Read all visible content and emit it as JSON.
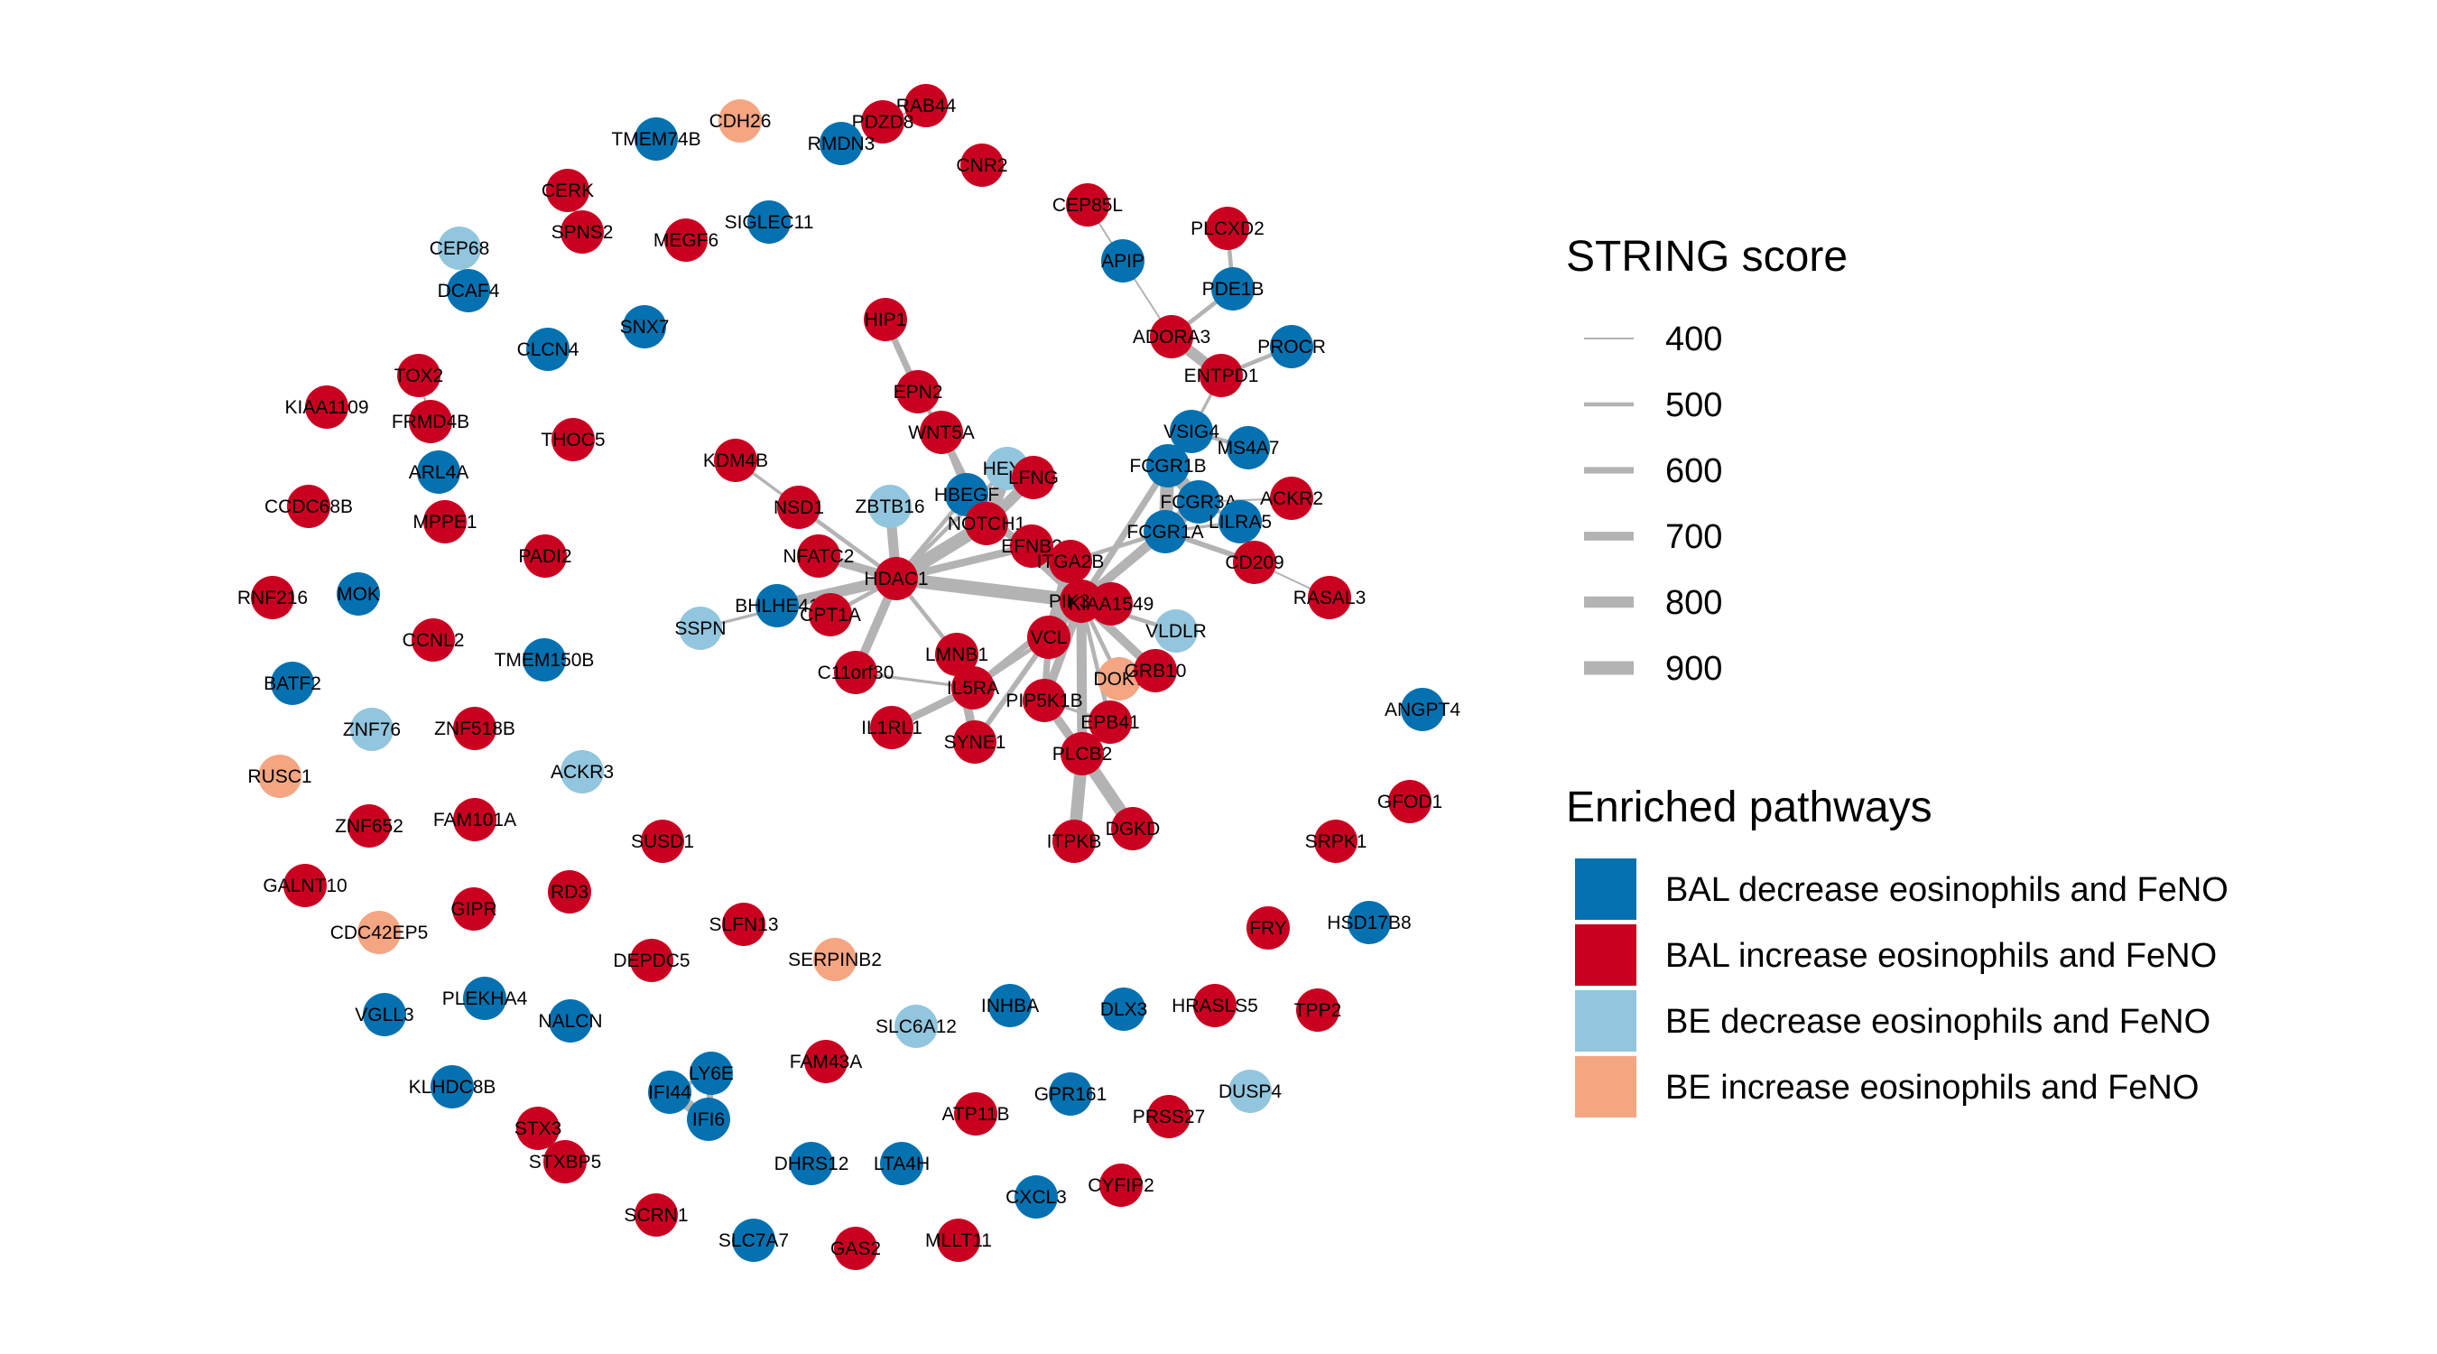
{
  "colors": {
    "edge": "#b3b3b3",
    "BAL_dec": "#0571b0",
    "BAL_inc": "#ca0020",
    "BE_dec": "#92c5de",
    "BE_inc": "#f4a582"
  },
  "legend": {
    "string_title": "STRING score",
    "string_items": [
      {
        "label": "400",
        "score": 400
      },
      {
        "label": "500",
        "score": 500
      },
      {
        "label": "600",
        "score": 600
      },
      {
        "label": "700",
        "score": 700
      },
      {
        "label": "800",
        "score": 800
      },
      {
        "label": "900",
        "score": 900
      }
    ],
    "pathways_title": "Enriched pathways",
    "pathway_items": [
      {
        "label": "BAL decrease eosinophils and FeNO",
        "group": "BAL_dec"
      },
      {
        "label": "BAL increase eosinophils and FeNO",
        "group": "BAL_inc"
      },
      {
        "label": "BE decrease eosinophils and FeNO",
        "group": "BE_dec"
      },
      {
        "label": "BE increase eosinophils and FeNO",
        "group": "BE_inc"
      }
    ]
  },
  "nodes": [
    {
      "id": "RAB44",
      "g": "BAL_inc"
    },
    {
      "id": "PDZD8",
      "g": "BAL_inc"
    },
    {
      "id": "CDH26",
      "g": "BE_inc"
    },
    {
      "id": "TMEM74B",
      "g": "BAL_dec"
    },
    {
      "id": "RMDN3",
      "g": "BAL_dec"
    },
    {
      "id": "CNR2",
      "g": "BAL_inc"
    },
    {
      "id": "CERK",
      "g": "BAL_inc"
    },
    {
      "id": "SPNS2",
      "g": "BAL_inc"
    },
    {
      "id": "MEGF6",
      "g": "BAL_inc"
    },
    {
      "id": "SIGLEC11",
      "g": "BAL_dec"
    },
    {
      "id": "CEP85L",
      "g": "BAL_inc"
    },
    {
      "id": "PLCXD2",
      "g": "BAL_inc"
    },
    {
      "id": "APIP",
      "g": "BAL_dec"
    },
    {
      "id": "CEP68",
      "g": "BE_dec"
    },
    {
      "id": "DCAF4",
      "g": "BAL_dec"
    },
    {
      "id": "PDE1B",
      "g": "BAL_dec"
    },
    {
      "id": "HIP1",
      "g": "BAL_inc"
    },
    {
      "id": "SNX7",
      "g": "BAL_dec"
    },
    {
      "id": "CLCN4",
      "g": "BAL_dec"
    },
    {
      "id": "ADORA3",
      "g": "BAL_inc"
    },
    {
      "id": "PROCR",
      "g": "BAL_dec"
    },
    {
      "id": "ENTPD1",
      "g": "BAL_inc"
    },
    {
      "id": "TOX2",
      "g": "BAL_inc"
    },
    {
      "id": "EPN2",
      "g": "BAL_inc"
    },
    {
      "id": "KIAA1109",
      "g": "BAL_inc"
    },
    {
      "id": "FRMD4B",
      "g": "BAL_inc"
    },
    {
      "id": "THOC5",
      "g": "BAL_inc"
    },
    {
      "id": "WNT5A",
      "g": "BAL_inc"
    },
    {
      "id": "VSIG4",
      "g": "BAL_dec"
    },
    {
      "id": "MS4A7",
      "g": "BAL_dec"
    },
    {
      "id": "KDM4B",
      "g": "BAL_inc"
    },
    {
      "id": "ARL4A",
      "g": "BAL_dec"
    },
    {
      "id": "HEY1",
      "g": "BE_dec"
    },
    {
      "id": "LFNG",
      "g": "BAL_inc"
    },
    {
      "id": "FCGR1B",
      "g": "BAL_dec"
    },
    {
      "id": "ACKR2",
      "g": "BAL_inc"
    },
    {
      "id": "CCDC68B",
      "g": "BAL_inc"
    },
    {
      "id": "HBEGF",
      "g": "BAL_dec"
    },
    {
      "id": "NSD1",
      "g": "BAL_inc"
    },
    {
      "id": "ZBTB16",
      "g": "BE_dec"
    },
    {
      "id": "FCGR3A",
      "g": "BAL_dec"
    },
    {
      "id": "MPPE1",
      "g": "BAL_inc"
    },
    {
      "id": "NOTCH1",
      "g": "BAL_inc"
    },
    {
      "id": "LILRA5",
      "g": "BAL_dec"
    },
    {
      "id": "FCGR1A",
      "g": "BAL_dec"
    },
    {
      "id": "EFNB2",
      "g": "BAL_inc"
    },
    {
      "id": "NFATC2",
      "g": "BAL_inc"
    },
    {
      "id": "PADI2",
      "g": "BAL_inc"
    },
    {
      "id": "ITGA2B",
      "g": "BAL_inc"
    },
    {
      "id": "CD209",
      "g": "BAL_inc"
    },
    {
      "id": "HDAC1",
      "g": "BAL_inc"
    },
    {
      "id": "RNF216",
      "g": "BAL_inc"
    },
    {
      "id": "MOK",
      "g": "BAL_dec"
    },
    {
      "id": "RASAL3",
      "g": "BAL_inc"
    },
    {
      "id": "PIK3R5",
      "g": "BAL_inc"
    },
    {
      "id": "KIAA1549",
      "g": "BAL_inc"
    },
    {
      "id": "BHLHE41",
      "g": "BAL_dec"
    },
    {
      "id": "CPT1A",
      "g": "BAL_inc"
    },
    {
      "id": "SSPN",
      "g": "BE_dec"
    },
    {
      "id": "VLDLR",
      "g": "BE_dec"
    },
    {
      "id": "CCNL2",
      "g": "BAL_inc"
    },
    {
      "id": "TMEM150B",
      "g": "BAL_dec"
    },
    {
      "id": "VCL",
      "g": "BAL_inc"
    },
    {
      "id": "LMNB1",
      "g": "BAL_inc"
    },
    {
      "id": "C11orf30",
      "g": "BAL_inc"
    },
    {
      "id": "DOK7",
      "g": "BE_inc"
    },
    {
      "id": "GRB10",
      "g": "BAL_inc"
    },
    {
      "id": "BATF2",
      "g": "BAL_dec"
    },
    {
      "id": "IL5RA",
      "g": "BAL_inc"
    },
    {
      "id": "PIP5K1B",
      "g": "BAL_inc"
    },
    {
      "id": "ANGPT4",
      "g": "BAL_dec"
    },
    {
      "id": "ZNF76",
      "g": "BE_dec"
    },
    {
      "id": "ZNF518B",
      "g": "BAL_inc"
    },
    {
      "id": "IL1RL1",
      "g": "BAL_inc"
    },
    {
      "id": "SYNE1",
      "g": "BAL_inc"
    },
    {
      "id": "EPB41",
      "g": "BAL_inc"
    },
    {
      "id": "PLCB2",
      "g": "BAL_inc"
    },
    {
      "id": "RUSC1",
      "g": "BE_inc"
    },
    {
      "id": "ACKR3",
      "g": "BE_dec"
    },
    {
      "id": "GFOD1",
      "g": "BAL_inc"
    },
    {
      "id": "FAM101A",
      "g": "BAL_inc"
    },
    {
      "id": "ZNF652",
      "g": "BAL_inc"
    },
    {
      "id": "SUSD1",
      "g": "BAL_inc"
    },
    {
      "id": "SRPK1",
      "g": "BAL_inc"
    },
    {
      "id": "ITPKB",
      "g": "BAL_inc"
    },
    {
      "id": "DGKD",
      "g": "BAL_inc"
    },
    {
      "id": "GALNT10",
      "g": "BAL_inc"
    },
    {
      "id": "RD3",
      "g": "BAL_inc"
    },
    {
      "id": "GIPR",
      "g": "BAL_inc"
    },
    {
      "id": "SLFN13",
      "g": "BAL_inc"
    },
    {
      "id": "FRY",
      "g": "BAL_inc"
    },
    {
      "id": "HSD17B8",
      "g": "BAL_dec"
    },
    {
      "id": "CDC42EP5",
      "g": "BE_inc"
    },
    {
      "id": "DEPDC5",
      "g": "BAL_inc"
    },
    {
      "id": "SERPINB2",
      "g": "BE_inc"
    },
    {
      "id": "PLEKHA4",
      "g": "BAL_dec"
    },
    {
      "id": "INHBA",
      "g": "BAL_dec"
    },
    {
      "id": "DLX3",
      "g": "BAL_dec"
    },
    {
      "id": "HRASLS5",
      "g": "BAL_inc"
    },
    {
      "id": "TPP2",
      "g": "BAL_inc"
    },
    {
      "id": "VGLL3",
      "g": "BAL_dec"
    },
    {
      "id": "NALCN",
      "g": "BAL_dec"
    },
    {
      "id": "SLC6A12",
      "g": "BE_dec"
    },
    {
      "id": "LY6E",
      "g": "BAL_dec"
    },
    {
      "id": "FAM43A",
      "g": "BAL_inc"
    },
    {
      "id": "IFI44",
      "g": "BAL_dec"
    },
    {
      "id": "KLHDC8B",
      "g": "BAL_dec"
    },
    {
      "id": "GPR161",
      "g": "BAL_dec"
    },
    {
      "id": "DUSP4",
      "g": "BE_dec"
    },
    {
      "id": "ATP11B",
      "g": "BAL_inc"
    },
    {
      "id": "PRSS27",
      "g": "BAL_inc"
    },
    {
      "id": "IFI6",
      "g": "BAL_dec"
    },
    {
      "id": "STX3",
      "g": "BAL_inc"
    },
    {
      "id": "STXBP5",
      "g": "BAL_inc"
    },
    {
      "id": "DHRS12",
      "g": "BAL_dec"
    },
    {
      "id": "LTA4H",
      "g": "BAL_dec"
    },
    {
      "id": "CYFIP2",
      "g": "BAL_inc"
    },
    {
      "id": "CXCL3",
      "g": "BAL_dec"
    },
    {
      "id": "SCRN1",
      "g": "BAL_inc"
    },
    {
      "id": "SLC7A7",
      "g": "BAL_dec"
    },
    {
      "id": "GAS2",
      "g": "BAL_inc"
    },
    {
      "id": "MLLT11",
      "g": "BAL_inc"
    }
  ],
  "edges": [
    {
      "s": "HIP1",
      "t": "EPN2",
      "score": 600
    },
    {
      "s": "EPN2",
      "t": "WNT5A",
      "score": 500
    },
    {
      "s": "WNT5A",
      "t": "NOTCH1",
      "score": 650
    },
    {
      "s": "WNT5A",
      "t": "HBEGF",
      "score": 500
    },
    {
      "s": "HEY1",
      "t": "NOTCH1",
      "score": 900
    },
    {
      "s": "LFNG",
      "t": "NOTCH1",
      "score": 800
    },
    {
      "s": "HEY1",
      "t": "HDAC1",
      "score": 500
    },
    {
      "s": "KDM4B",
      "t": "HDAC1",
      "score": 450
    },
    {
      "s": "NSD1",
      "t": "HDAC1",
      "score": 500
    },
    {
      "s": "ZBTB16",
      "t": "HDAC1",
      "score": 750
    },
    {
      "s": "HBEGF",
      "t": "HDAC1",
      "score": 500
    },
    {
      "s": "NOTCH1",
      "t": "HDAC1",
      "score": 900
    },
    {
      "s": "NFATC2",
      "t": "HDAC1",
      "score": 700
    },
    {
      "s": "BHLHE41",
      "t": "HDAC1",
      "score": 800
    },
    {
      "s": "SSPN",
      "t": "HDAC1",
      "score": 450
    },
    {
      "s": "CPT1A",
      "t": "HDAC1",
      "score": 500
    },
    {
      "s": "C11orf30",
      "t": "HDAC1",
      "score": 700
    },
    {
      "s": "LMNB1",
      "t": "HDAC1",
      "score": 500
    },
    {
      "s": "HDAC1",
      "t": "PIK3R5",
      "score": 900
    },
    {
      "s": "HDAC1",
      "t": "EFNB2",
      "score": 650
    },
    {
      "s": "NOTCH1",
      "t": "EFNB2",
      "score": 600
    },
    {
      "s": "EFNB2",
      "t": "PIK3R5",
      "score": 600
    },
    {
      "s": "HBEGF",
      "t": "PIK3R5",
      "score": 650
    },
    {
      "s": "ITGA2B",
      "t": "PIK3R5",
      "score": 600
    },
    {
      "s": "ITGA2B",
      "t": "VCL",
      "score": 800
    },
    {
      "s": "ITGA2B",
      "t": "FCGR1A",
      "score": 500
    },
    {
      "s": "FCGR1A",
      "t": "PIK3R5",
      "score": 700
    },
    {
      "s": "FCGR3A",
      "t": "PIK3R5",
      "score": 700
    },
    {
      "s": "FCGR1B",
      "t": "PIK3R5",
      "score": 600
    },
    {
      "s": "FCGR1B",
      "t": "FCGR1A",
      "score": 900
    },
    {
      "s": "FCGR1B",
      "t": "FCGR3A",
      "score": 900
    },
    {
      "s": "FCGR3A",
      "t": "FCGR1A",
      "score": 900
    },
    {
      "s": "VSIG4",
      "t": "FCGR1B",
      "score": 600
    },
    {
      "s": "VSIG4",
      "t": "MS4A7",
      "score": 500
    },
    {
      "s": "VSIG4",
      "t": "ENTPD1",
      "score": 450
    },
    {
      "s": "ENTPD1",
      "t": "ADORA3",
      "score": 800
    },
    {
      "s": "ADORA3",
      "t": "PDE1B",
      "score": 500
    },
    {
      "s": "PDE1B",
      "t": "PLCXD2",
      "score": 500
    },
    {
      "s": "CEP85L",
      "t": "APIP",
      "score": 400
    },
    {
      "s": "APIP",
      "t": "ADORA3",
      "score": 400
    },
    {
      "s": "ENTPD1",
      "t": "PROCR",
      "score": 500
    },
    {
      "s": "FCGR1A",
      "t": "LILRA5",
      "score": 450
    },
    {
      "s": "FCGR1A",
      "t": "CD209",
      "score": 550
    },
    {
      "s": "FCGR3A",
      "t": "LILRA5",
      "score": 500
    },
    {
      "s": "FCGR3A",
      "t": "ACKR2",
      "score": 400
    },
    {
      "s": "CD209",
      "t": "RASAL3",
      "score": 400
    },
    {
      "s": "PIK3R5",
      "t": "KIAA1549",
      "score": 700
    },
    {
      "s": "PIK3R5",
      "t": "VCL",
      "score": 700
    },
    {
      "s": "PIK3R5",
      "t": "VLDLR",
      "score": 500
    },
    {
      "s": "PIK3R5",
      "t": "GRB10",
      "score": 700
    },
    {
      "s": "PIK3R5",
      "t": "DOK7",
      "score": 500
    },
    {
      "s": "PIK3R5",
      "t": "PIP5K1B",
      "score": 700
    },
    {
      "s": "PIK3R5",
      "t": "PLCB2",
      "score": 750
    },
    {
      "s": "PIK3R5",
      "t": "EPB41",
      "score": 500
    },
    {
      "s": "PIK3R5",
      "t": "IL5RA",
      "score": 600
    },
    {
      "s": "GRB10",
      "t": "DOK7",
      "score": 700
    },
    {
      "s": "VCL",
      "t": "PIP5K1B",
      "score": 600
    },
    {
      "s": "VCL",
      "t": "SYNE1",
      "score": 550
    },
    {
      "s": "VCL",
      "t": "IL5RA",
      "score": 500
    },
    {
      "s": "LMNB1",
      "t": "SYNE1",
      "score": 700
    },
    {
      "s": "LMNB1",
      "t": "IL5RA",
      "score": 450
    },
    {
      "s": "IL5RA",
      "t": "IL1RL1",
      "score": 650
    },
    {
      "s": "IL5RA",
      "t": "C11orf30",
      "score": 450
    },
    {
      "s": "PIP5K1B",
      "t": "PLCB2",
      "score": 700
    },
    {
      "s": "EPB41",
      "t": "PLCB2",
      "score": 500
    },
    {
      "s": "PLCB2",
      "t": "ITPKB",
      "score": 850
    },
    {
      "s": "PLCB2",
      "t": "DGKD",
      "score": 850
    },
    {
      "s": "PIP5K1B",
      "t": "EPB41",
      "score": 450
    },
    {
      "s": "LY6E",
      "t": "IFI44",
      "score": 500
    },
    {
      "s": "LY6E",
      "t": "IFI6",
      "score": 600
    },
    {
      "s": "IFI44",
      "t": "IFI6",
      "score": 800
    },
    {
      "s": "STX3",
      "t": "STXBP5",
      "score": 800
    },
    {
      "s": "TOX2",
      "t": "FRMD4B",
      "score": 400
    },
    {
      "s": "RAB44",
      "t": "PDZD8",
      "score": 400
    },
    {
      "s": "CERK",
      "t": "SPNS2",
      "score": 500
    },
    {
      "s": "CEP68",
      "t": "DCAF4",
      "score": 400
    }
  ]
}
